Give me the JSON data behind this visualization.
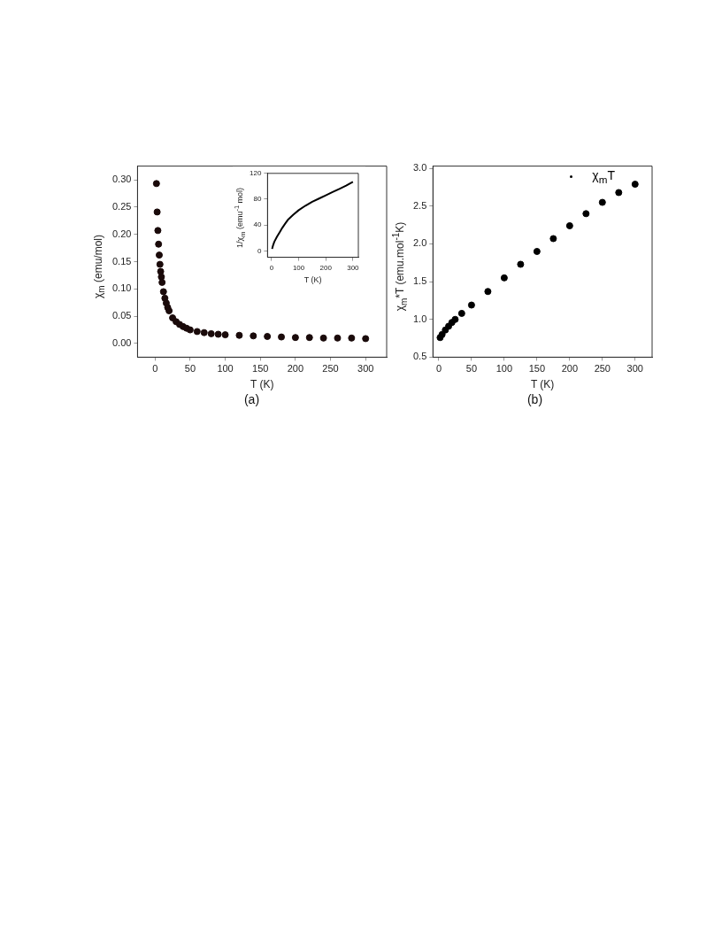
{
  "chart_data": [
    {
      "type": "scatter",
      "xlabel": "T (K)",
      "ylabel": "χ$_{m}$ (emu/mol)",
      "annotations": [
        "(a)"
      ],
      "marker": "circle",
      "grid": false,
      "xlim": [
        -25,
        330
      ],
      "xticks": [
        0,
        50,
        100,
        150,
        200,
        250,
        300
      ],
      "ylim": [
        -0.025,
        0.325
      ],
      "yticks": [
        {
          "value": 0,
          "label": "0.00"
        },
        0.05,
        {
          "value": 0.1,
          "label": "0.10"
        },
        0.15,
        {
          "value": 0.2,
          "label": "0.20"
        },
        0.25,
        {
          "value": 0.3,
          "label": "0.30"
        }
      ],
      "series": [
        {
          "color": "#1a0a0a",
          "x": [
            2,
            3,
            4,
            5,
            6,
            7,
            8,
            9,
            10,
            12,
            14,
            16,
            18,
            20,
            25,
            30,
            35,
            40,
            45,
            50,
            60,
            70,
            80,
            90,
            100,
            120,
            140,
            160,
            180,
            200,
            220,
            240,
            260,
            280,
            300
          ],
          "values": [
            0.293,
            0.241,
            0.207,
            0.182,
            0.162,
            0.145,
            0.132,
            0.122,
            0.112,
            0.095,
            0.083,
            0.074,
            0.066,
            0.06,
            0.047,
            0.04,
            0.035,
            0.031,
            0.028,
            0.025,
            0.022,
            0.02,
            0.018,
            0.017,
            0.016,
            0.015,
            0.014,
            0.013,
            0.012,
            0.011,
            0.011,
            0.01,
            0.01,
            0.01,
            0.009
          ]
        }
      ]
    },
    {
      "type": "line",
      "xlabel": "T (K)",
      "ylabel": "1/χ$_{m}$ (emu$^{-1}$ mol)",
      "marker": "none",
      "grid": false,
      "xlim": [
        -15,
        320
      ],
      "xticks": [
        0,
        100,
        200,
        300
      ],
      "ylim": [
        -10,
        120
      ],
      "yticks": [
        0,
        40,
        80,
        120
      ],
      "series": [
        {
          "color": "#000000",
          "x": [
            2,
            5,
            10,
            20,
            30,
            40,
            50,
            60,
            80,
            100,
            125,
            150,
            175,
            200,
            225,
            250,
            275,
            300
          ],
          "values": [
            3,
            8,
            14,
            22,
            29,
            36,
            42,
            48,
            56,
            63,
            70,
            76,
            81,
            86,
            91,
            96,
            101,
            107
          ]
        }
      ]
    },
    {
      "type": "scatter",
      "xlabel": "T (K)",
      "ylabel": "χ$_{m}$*T (emu.mol$^{-1}$K)",
      "annotations": [
        "(b)"
      ],
      "marker": "circle",
      "grid": false,
      "legend": "top right",
      "xlim": [
        -9,
        326
      ],
      "xticks": [
        0,
        50,
        100,
        150,
        200,
        250,
        300
      ],
      "ylim": [
        0.5,
        3.03
      ],
      "yticks": [
        0.5,
        {
          "value": 1,
          "label": "1.0"
        },
        1.5,
        {
          "value": 2,
          "label": "2.0"
        },
        2.5,
        {
          "value": 3,
          "label": "3.0"
        }
      ],
      "series": [
        {
          "name": "χ$_{m}$T",
          "color": "#000000",
          "x": [
            2,
            5,
            10,
            15,
            20,
            25,
            35,
            50,
            75,
            100,
            125,
            150,
            175,
            200,
            225,
            250,
            275,
            300
          ],
          "values": [
            0.76,
            0.8,
            0.86,
            0.91,
            0.96,
            1.0,
            1.08,
            1.19,
            1.37,
            1.55,
            1.73,
            1.9,
            2.07,
            2.24,
            2.4,
            2.55,
            2.68,
            2.79
          ]
        }
      ]
    }
  ]
}
